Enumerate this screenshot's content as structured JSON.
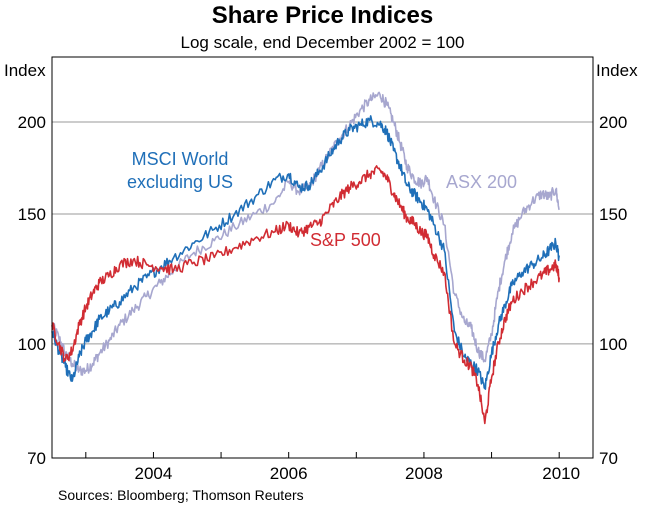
{
  "chart_data": {
    "type": "line",
    "title": "Share Price Indices",
    "subtitle": "Log scale, end December 2002 = 100",
    "ylabel_left": "Index",
    "ylabel_right": "Index",
    "y_scale": "log",
    "ylim": [
      70,
      245
    ],
    "y_ticks": [
      70,
      100,
      150,
      200
    ],
    "xlim": [
      2002.5,
      2010.5
    ],
    "x_ticks": [
      2004,
      2006,
      2008,
      2010
    ],
    "x_tick_labels": [
      "2004",
      "2006",
      "2008",
      "2010"
    ],
    "gridlines": "horizontal",
    "source": "Sources: Bloomberg; Thomson Reuters",
    "series": [
      {
        "name": "ASX 200",
        "color": "#a7a7cf",
        "x": [
          2002.5,
          2002.6,
          2002.7,
          2002.8,
          2002.9,
          2003.0,
          2003.1,
          2003.2,
          2003.35,
          2003.5,
          2003.7,
          2003.9,
          2004.1,
          2004.3,
          2004.6,
          2004.9,
          2005.2,
          2005.5,
          2005.8,
          2006.0,
          2006.15,
          2006.3,
          2006.45,
          2006.6,
          2006.75,
          2006.9,
          2007.05,
          2007.2,
          2007.35,
          2007.45,
          2007.55,
          2007.65,
          2007.75,
          2007.85,
          2007.95,
          2008.05,
          2008.15,
          2008.3,
          2008.45,
          2008.6,
          2008.7,
          2008.8,
          2008.9,
          2009.0,
          2009.1,
          2009.2,
          2009.3,
          2009.45,
          2009.6,
          2009.75,
          2009.85,
          2009.95,
          2010.0
        ],
        "values": [
          106,
          102,
          97,
          94,
          92,
          92,
          94,
          97,
          101,
          106,
          111,
          116,
          121,
          126,
          133,
          138,
          144,
          150,
          156,
          166,
          161,
          163,
          172,
          181,
          190,
          198,
          207,
          214,
          218,
          211,
          200,
          187,
          174,
          168,
          165,
          168,
          157,
          145,
          117,
          107,
          105,
          98,
          95,
          103,
          118,
          130,
          141,
          150,
          156,
          160,
          158,
          162,
          152
        ]
      },
      {
        "name": "MSCI World excluding US",
        "color": "#1f6fb8",
        "x": [
          2002.5,
          2002.6,
          2002.7,
          2002.8,
          2002.9,
          2003.0,
          2003.1,
          2003.2,
          2003.35,
          2003.5,
          2003.7,
          2003.9,
          2004.1,
          2004.3,
          2004.6,
          2004.9,
          2005.2,
          2005.5,
          2005.8,
          2006.0,
          2006.15,
          2006.3,
          2006.45,
          2006.6,
          2006.75,
          2006.9,
          2007.05,
          2007.2,
          2007.35,
          2007.45,
          2007.55,
          2007.65,
          2007.75,
          2007.85,
          2007.95,
          2008.05,
          2008.15,
          2008.3,
          2008.45,
          2008.6,
          2008.7,
          2008.8,
          2008.9,
          2009.0,
          2009.1,
          2009.2,
          2009.3,
          2009.45,
          2009.6,
          2009.75,
          2009.85,
          2009.95,
          2010.0
        ],
        "values": [
          104,
          98,
          93,
          89,
          96,
          101,
          104,
          108,
          111,
          114,
          119,
          123,
          127,
          131,
          137,
          143,
          150,
          158,
          167,
          170,
          163,
          164,
          171,
          180,
          189,
          195,
          198,
          201,
          199,
          194,
          183,
          174,
          164,
          160,
          156,
          152,
          145,
          134,
          104,
          96,
          94,
          92,
          87,
          97,
          106,
          113,
          120,
          125,
          128,
          131,
          134,
          137,
          131
        ]
      },
      {
        "name": "S&P 500",
        "color": "#d12c33",
        "x": [
          2002.5,
          2002.6,
          2002.7,
          2002.8,
          2002.9,
          2003.0,
          2003.1,
          2003.2,
          2003.35,
          2003.5,
          2003.7,
          2003.9,
          2004.1,
          2004.3,
          2004.6,
          2004.9,
          2005.2,
          2005.5,
          2005.8,
          2006.0,
          2006.15,
          2006.3,
          2006.45,
          2006.6,
          2006.75,
          2006.9,
          2007.05,
          2007.2,
          2007.35,
          2007.45,
          2007.55,
          2007.65,
          2007.75,
          2007.85,
          2007.95,
          2008.05,
          2008.15,
          2008.3,
          2008.45,
          2008.6,
          2008.7,
          2008.8,
          2008.9,
          2009.0,
          2009.1,
          2009.2,
          2009.3,
          2009.45,
          2009.6,
          2009.75,
          2009.85,
          2009.95,
          2010.0
        ],
        "values": [
          106,
          100,
          95,
          98,
          106,
          112,
          117,
          121,
          124,
          128,
          130,
          128,
          127,
          126,
          129,
          131,
          135,
          139,
          142,
          145,
          141,
          144,
          146,
          152,
          158,
          163,
          166,
          170,
          172,
          168,
          160,
          154,
          148,
          146,
          142,
          140,
          132,
          125,
          100,
          95,
          93,
          88,
          78,
          90,
          100,
          108,
          114,
          118,
          121,
          124,
          126,
          128,
          123
        ]
      }
    ],
    "annotations": [
      {
        "text": "MSCI World",
        "color": "#1f6fb8"
      },
      {
        "text": "excluding US",
        "color": "#1f6fb8"
      },
      {
        "text": "S&P 500",
        "color": "#d12c33"
      },
      {
        "text": "ASX 200",
        "color": "#a7a7cf"
      }
    ]
  }
}
